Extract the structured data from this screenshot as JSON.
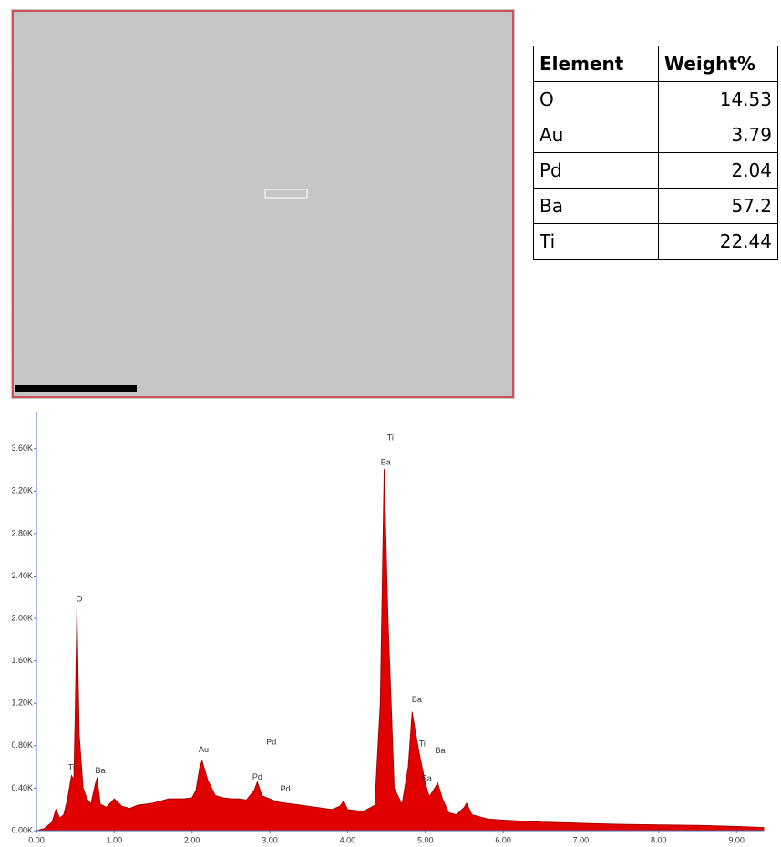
{
  "table": {
    "header": [
      "Element",
      "Weight%"
    ],
    "rows": [
      [
        "O",
        "14.53"
      ],
      [
        "Au",
        "3.79"
      ],
      [
        "Pd",
        "2.04"
      ],
      [
        "Ba",
        "57.2"
      ],
      [
        "Ti",
        "22.44"
      ]
    ]
  },
  "chart_data": {
    "type": "area",
    "color": "#e00000",
    "x": [
      0.0,
      0.1,
      0.2,
      0.25,
      0.3,
      0.35,
      0.4,
      0.45,
      0.48,
      0.5,
      0.52,
      0.55,
      0.6,
      0.65,
      0.7,
      0.75,
      0.78,
      0.82,
      0.9,
      1.0,
      1.1,
      1.2,
      1.3,
      1.4,
      1.5,
      1.6,
      1.7,
      1.8,
      1.9,
      2.0,
      2.05,
      2.1,
      2.13,
      2.2,
      2.3,
      2.4,
      2.5,
      2.6,
      2.7,
      2.8,
      2.84,
      2.9,
      3.0,
      3.1,
      3.2,
      3.4,
      3.6,
      3.8,
      3.9,
      3.95,
      4.0,
      4.2,
      4.35,
      4.42,
      4.47,
      4.52,
      4.6,
      4.7,
      4.78,
      4.83,
      4.88,
      4.93,
      5.0,
      5.05,
      5.12,
      5.16,
      5.22,
      5.3,
      5.4,
      5.5,
      5.53,
      5.6,
      5.8,
      6.0,
      6.5,
      7.0,
      7.5,
      8.0,
      8.5,
      9.0,
      9.35
    ],
    "values": [
      0,
      20,
      80,
      200,
      120,
      150,
      300,
      520,
      480,
      1200,
      2120,
      900,
      400,
      300,
      250,
      420,
      500,
      250,
      220,
      300,
      230,
      210,
      240,
      250,
      260,
      280,
      300,
      300,
      300,
      310,
      380,
      600,
      660,
      480,
      330,
      310,
      300,
      300,
      290,
      380,
      460,
      330,
      300,
      270,
      260,
      240,
      220,
      200,
      230,
      280,
      200,
      180,
      240,
      1200,
      3410,
      2000,
      400,
      250,
      600,
      1120,
      900,
      700,
      450,
      320,
      400,
      450,
      300,
      170,
      150,
      220,
      260,
      150,
      110,
      100,
      80,
      70,
      60,
      55,
      50,
      40,
      30
    ],
    "xlim": [
      0,
      9.35
    ],
    "ylim": [
      0,
      3950
    ],
    "xticks": [
      {
        "value": 0,
        "label": "0.00"
      },
      {
        "value": 1,
        "label": "1.00"
      },
      {
        "value": 2,
        "label": "2.00"
      },
      {
        "value": 3,
        "label": "3.00"
      },
      {
        "value": 4,
        "label": "4.00"
      },
      {
        "value": 5,
        "label": "5.00"
      },
      {
        "value": 6,
        "label": "6.00"
      },
      {
        "value": 7,
        "label": "7.00"
      },
      {
        "value": 8,
        "label": "8.00"
      },
      {
        "value": 9,
        "label": "9.00"
      }
    ],
    "yticks": [
      {
        "value": 0,
        "label": "0.00K"
      },
      {
        "value": 400,
        "label": "0.40K"
      },
      {
        "value": 800,
        "label": "0.80K"
      },
      {
        "value": 1200,
        "label": "1.20K"
      },
      {
        "value": 1600,
        "label": "1.60K"
      },
      {
        "value": 2000,
        "label": "2.00K"
      },
      {
        "value": 2400,
        "label": "2.40K"
      },
      {
        "value": 2800,
        "label": "2.80K"
      },
      {
        "value": 3200,
        "label": "3.20K"
      },
      {
        "value": 3600,
        "label": "3.60K"
      }
    ],
    "annotations": [
      {
        "text": "O",
        "x": 0.55,
        "y": 2180
      },
      {
        "text": "Ti",
        "x": 0.45,
        "y": 590
      },
      {
        "text": "Ba",
        "x": 0.82,
        "y": 560
      },
      {
        "text": "Au",
        "x": 2.15,
        "y": 760
      },
      {
        "text": "Pd",
        "x": 2.84,
        "y": 500
      },
      {
        "text": "Pd",
        "x": 3.02,
        "y": 830
      },
      {
        "text": "Pd",
        "x": 3.2,
        "y": 390
      },
      {
        "text": "Ti",
        "x": 4.55,
        "y": 3700
      },
      {
        "text": "Ba",
        "x": 4.49,
        "y": 3470
      },
      {
        "text": "Ba",
        "x": 4.89,
        "y": 1230
      },
      {
        "text": "Ti",
        "x": 4.96,
        "y": 815
      },
      {
        "text": "Ba",
        "x": 5.19,
        "y": 750
      },
      {
        "text": "Ba",
        "x": 5.02,
        "y": 490
      }
    ]
  }
}
